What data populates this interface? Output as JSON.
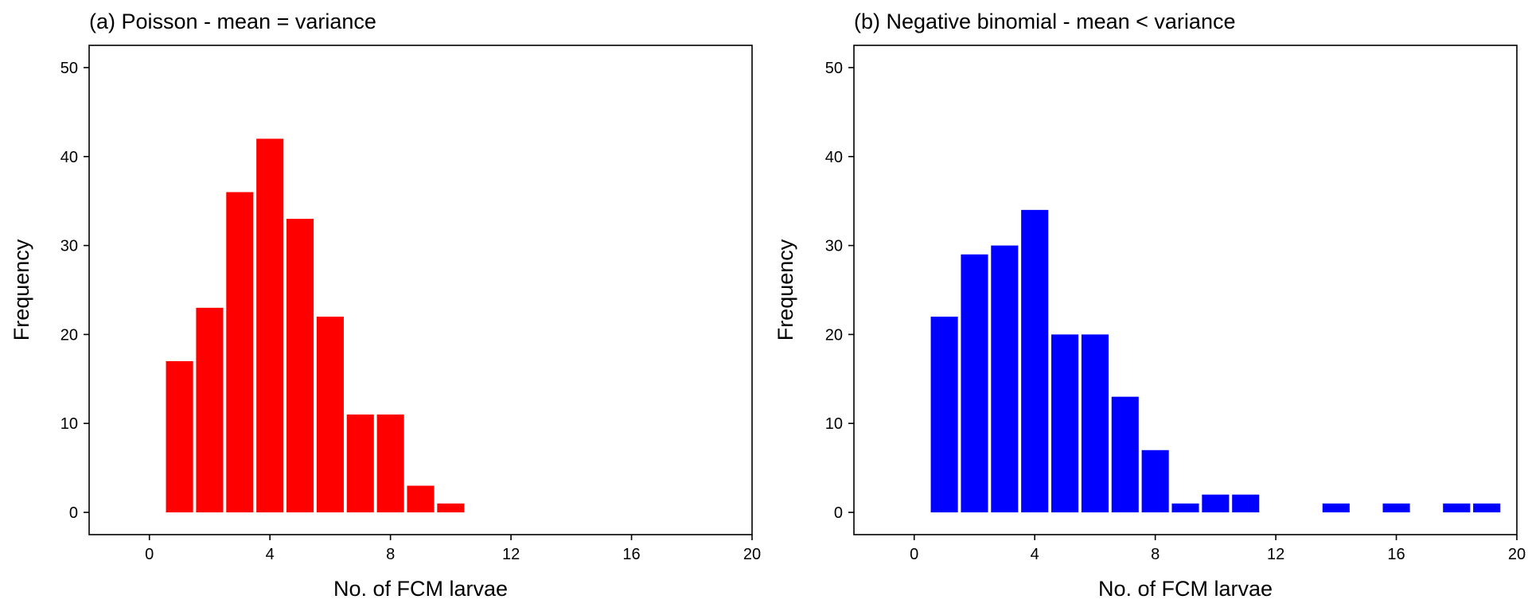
{
  "chart_data": [
    {
      "type": "bar",
      "title": "(a) Poisson - mean = variance",
      "xlabel": "No. of FCM larvae",
      "ylabel": "Frequency",
      "xlim": [
        -2,
        20
      ],
      "ylim": [
        -2.5,
        52.5
      ],
      "xticks": [
        "0",
        "4",
        "8",
        "12",
        "16",
        "20"
      ],
      "yticks": [
        "0",
        "10",
        "20",
        "30",
        "40",
        "50"
      ],
      "bar_color": "#ff0000",
      "grid": false,
      "categories": [
        1,
        2,
        3,
        4,
        5,
        6,
        7,
        8,
        9,
        10
      ],
      "values": [
        17,
        23,
        36,
        42,
        33,
        22,
        11,
        11,
        3,
        1
      ]
    },
    {
      "type": "bar",
      "title": "(b) Negative binomial - mean < variance",
      "xlabel": "No. of FCM larvae",
      "ylabel": "Frequency",
      "xlim": [
        -2,
        20
      ],
      "ylim": [
        -2.5,
        52.5
      ],
      "xticks": [
        "0",
        "4",
        "8",
        "12",
        "16",
        "20"
      ],
      "yticks": [
        "0",
        "10",
        "20",
        "30",
        "40",
        "50"
      ],
      "bar_color": "#0000ff",
      "grid": false,
      "categories": [
        1,
        2,
        3,
        4,
        5,
        6,
        7,
        8,
        9,
        10,
        11,
        14,
        16,
        18,
        19
      ],
      "values": [
        22,
        29,
        30,
        34,
        20,
        20,
        13,
        7,
        1,
        2,
        2,
        1,
        1,
        1,
        1
      ]
    }
  ]
}
